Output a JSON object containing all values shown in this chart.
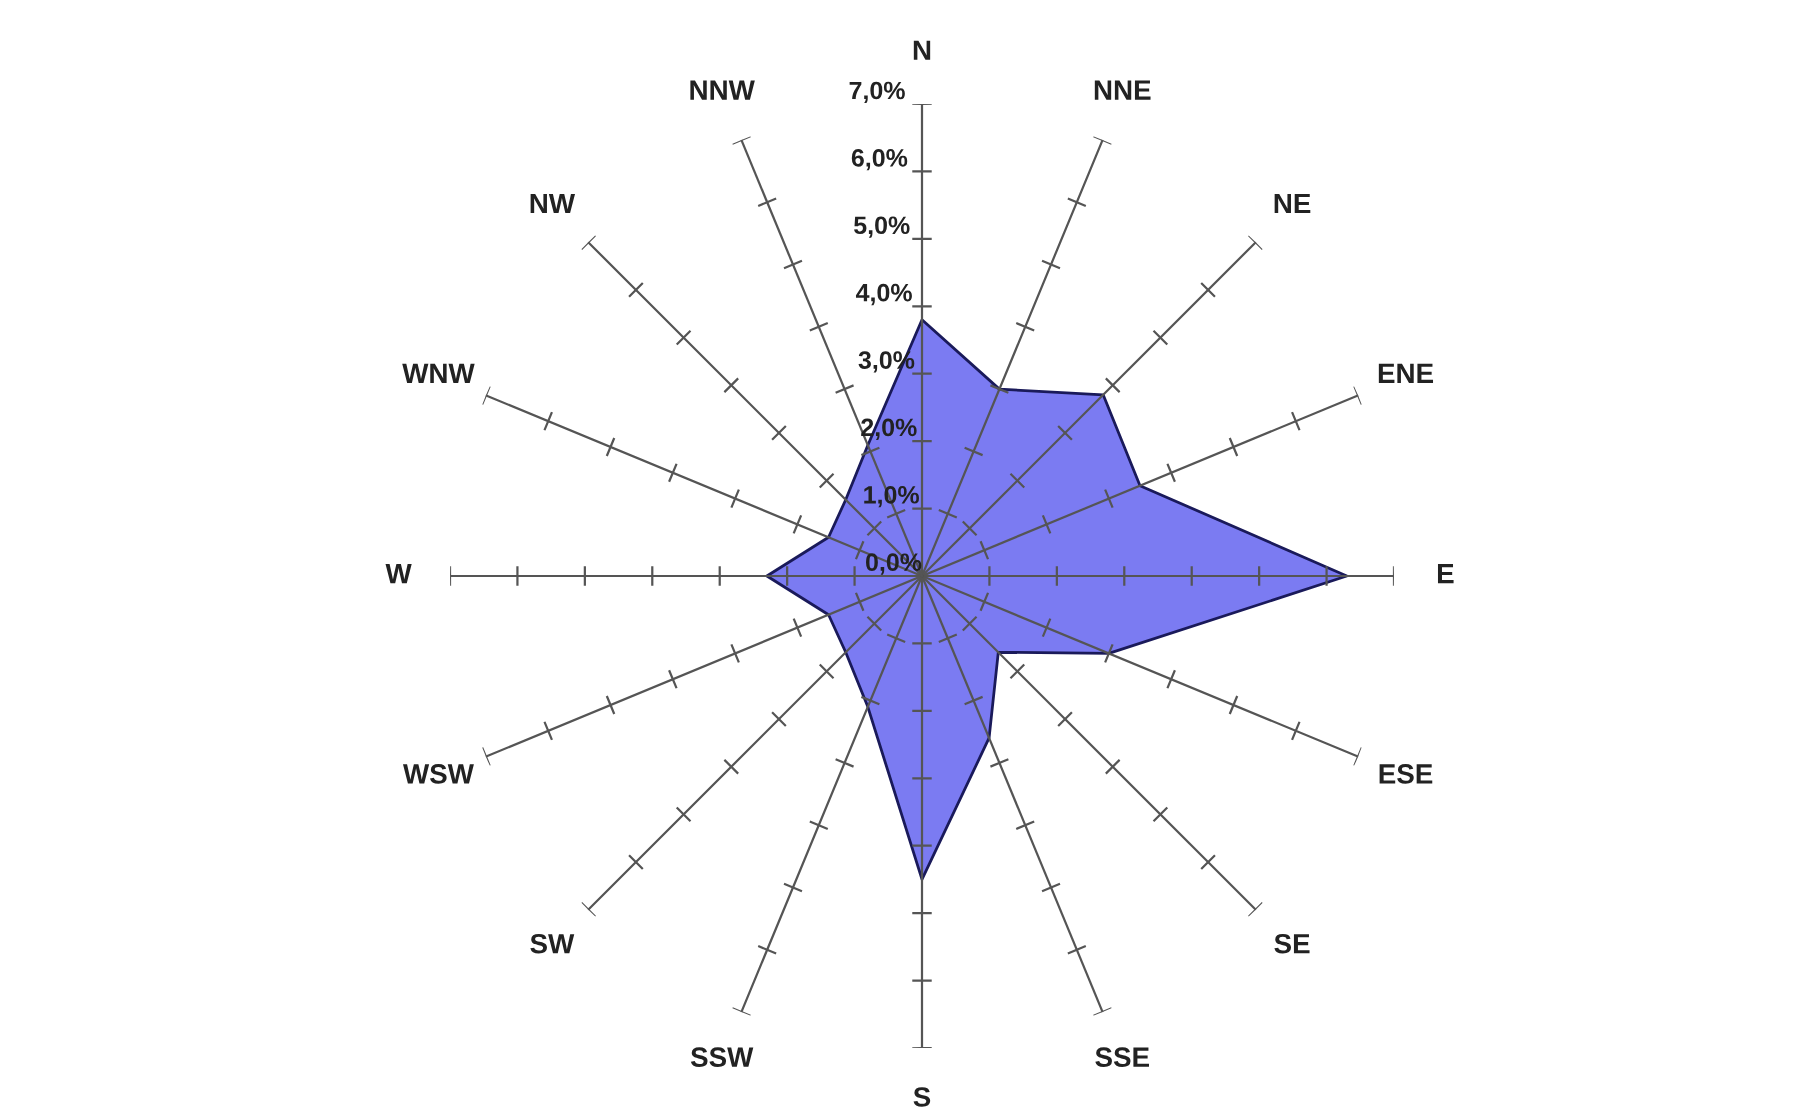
{
  "chart_data": {
    "type": "radar",
    "categories": [
      "N",
      "NNE",
      "NE",
      "ENE",
      "E",
      "ESE",
      "SE",
      "SSE",
      "S",
      "SSW",
      "SW",
      "WSW",
      "W",
      "WNW",
      "NW",
      "NNW"
    ],
    "series": [
      {
        "color": "#7b7bf2",
        "values": [
          3.8,
          3.0,
          3.8,
          3.5,
          6.3,
          3.0,
          1.6,
          2.6,
          4.5,
          2.1,
          1.6,
          1.5,
          2.3,
          1.5,
          1.6,
          2.1
        ]
      }
    ],
    "ylim": [
      0,
      7
    ],
    "yticks": [
      {
        "value": 0,
        "label": "0,0%"
      },
      {
        "value": 1,
        "label": "1,0%"
      },
      {
        "value": 2,
        "label": "2,0%"
      },
      {
        "value": 3,
        "label": "3,0%"
      },
      {
        "value": 4,
        "label": "4,0%"
      },
      {
        "value": 5,
        "label": "5,0%"
      },
      {
        "value": 6,
        "label": "6,0%"
      },
      {
        "value": 7,
        "label": "7,0%"
      }
    ],
    "grid": true
  }
}
